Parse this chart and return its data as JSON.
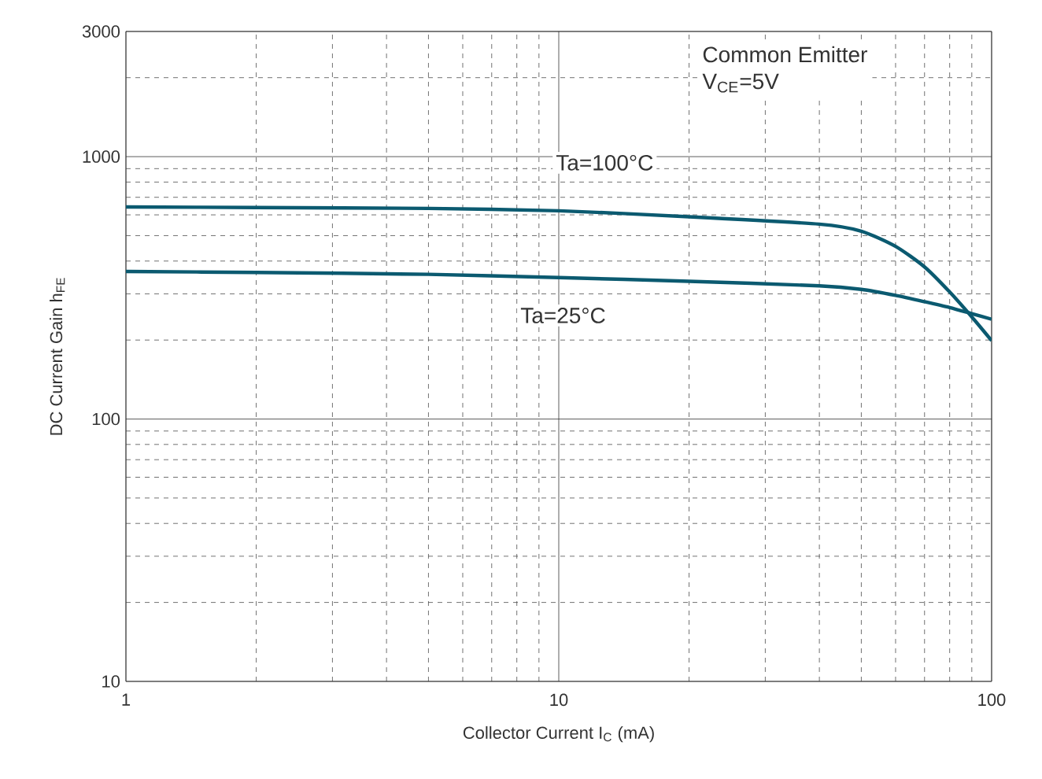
{
  "chart_data": {
    "type": "line",
    "xlabel": "Collector Current I$_{C}$ (mA)",
    "ylabel": "DC Current Gain h$_{FE}$",
    "log": "xy",
    "grid": true,
    "marker": "none",
    "line_style": "solid",
    "xlim": [
      1,
      100
    ],
    "xticks": [
      1,
      10,
      100
    ],
    "ylim": [
      10,
      3000
    ],
    "yticks": [
      10,
      100,
      1000,
      3000
    ],
    "series": [
      {
        "color": "#0b5a70",
        "x": [
          1,
          2,
          5,
          10,
          20,
          40,
          50,
          60,
          70,
          80,
          90,
          100
        ],
        "values": [
          643,
          640,
          635,
          622,
          590,
          553,
          520,
          455,
          380,
          305,
          245,
          199
        ]
      },
      {
        "color": "#0b5a70",
        "x": [
          1,
          2,
          5,
          10,
          20,
          40,
          50,
          60,
          70,
          80,
          90,
          100
        ],
        "values": [
          365,
          362,
          356,
          346,
          335,
          322,
          312,
          296,
          280,
          266,
          252,
          240
        ]
      }
    ],
    "annotations": [
      "Common Emitter",
      "V$_{CE}$=5V",
      "Ta=100°C",
      "Ta=25°C"
    ]
  }
}
